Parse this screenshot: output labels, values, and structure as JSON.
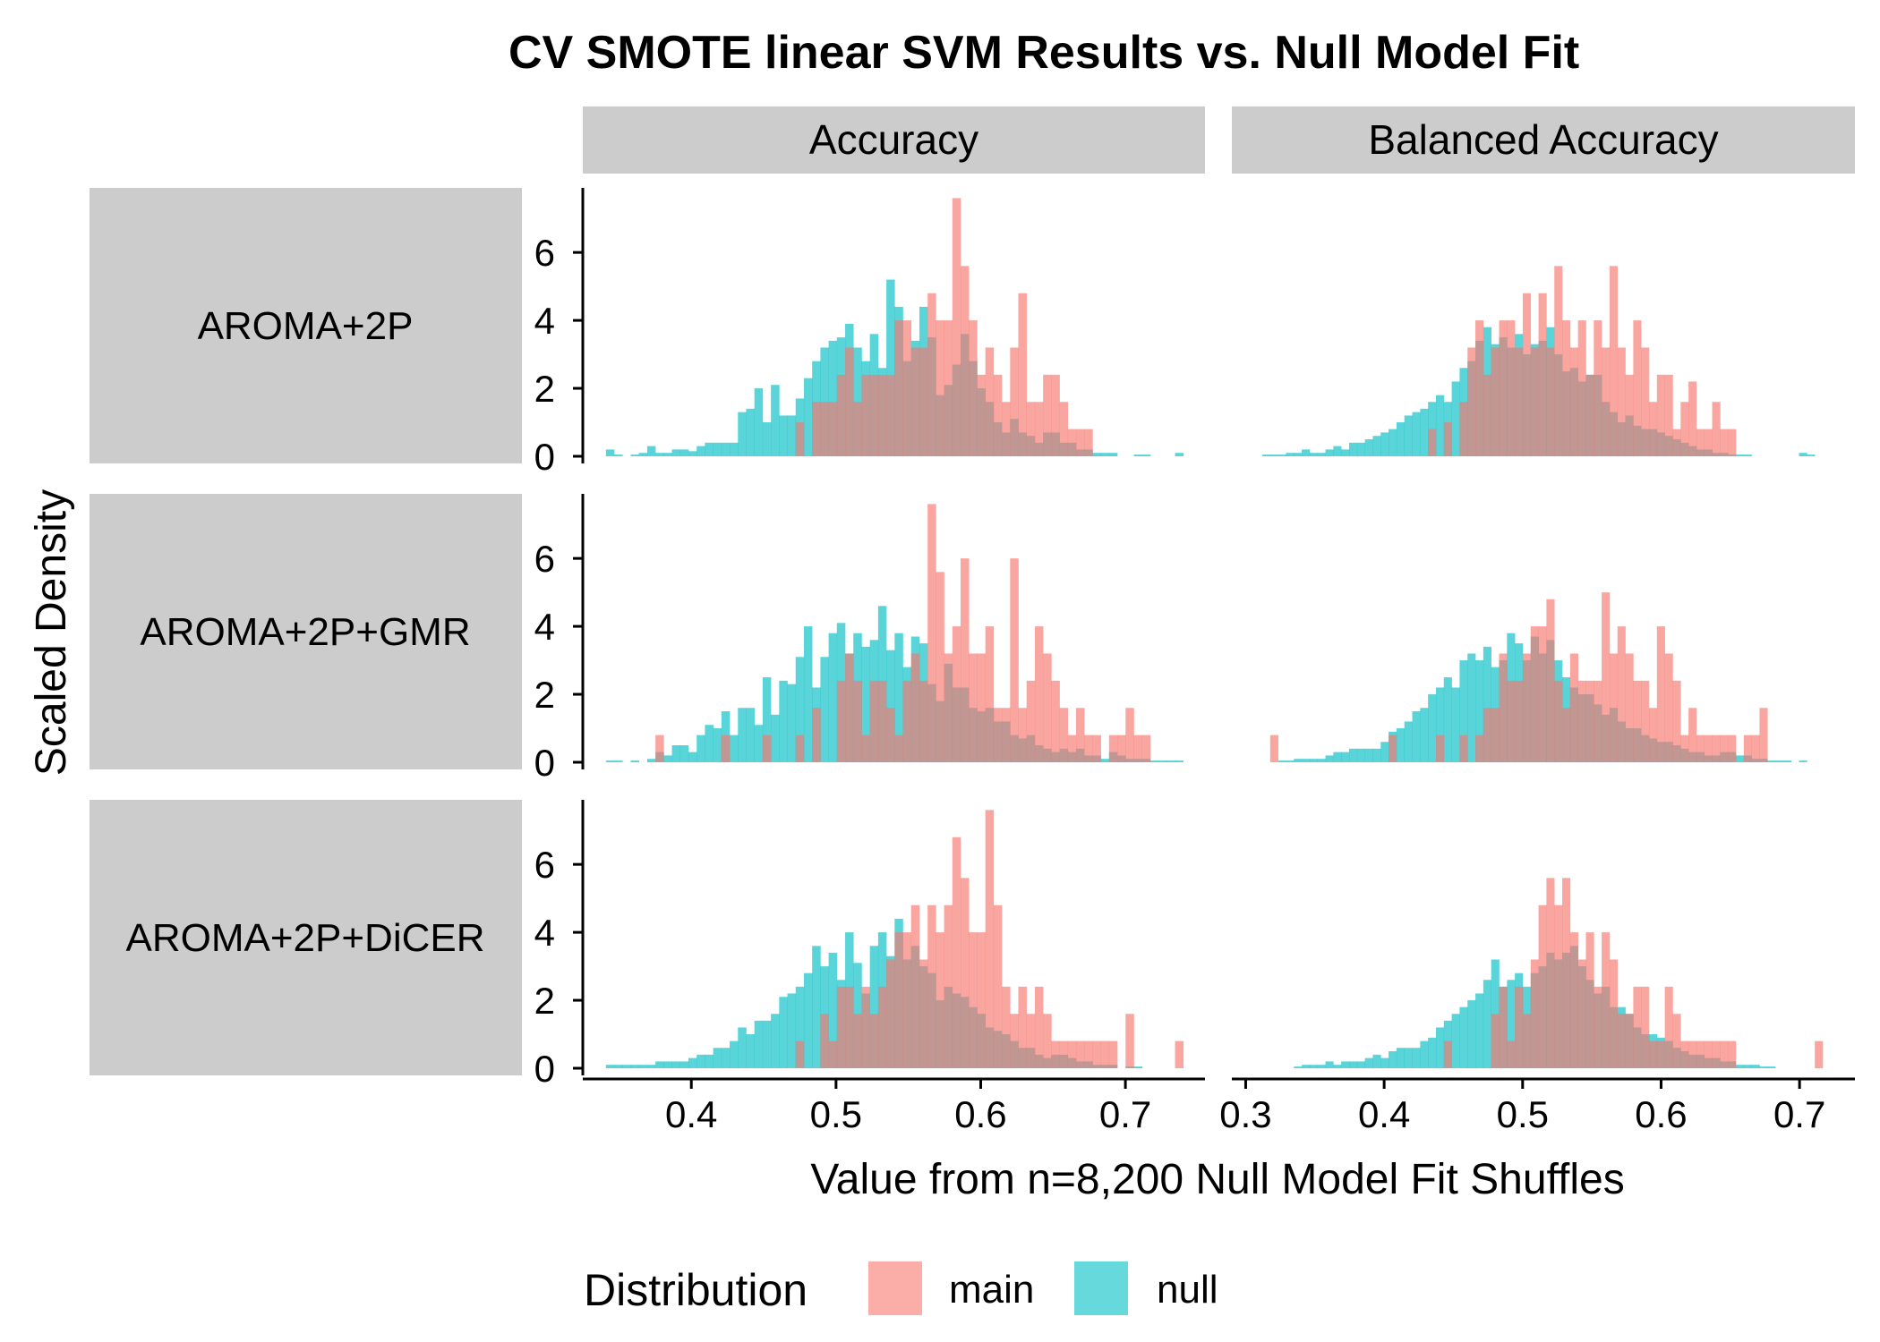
{
  "chart_data": {
    "type": "histogram",
    "title": "CV SMOTE linear SVM Results vs. Null Model Fit",
    "xlabel": "Value from n=8,200 Null Model Fit Shuffles",
    "ylabel": "Scaled Density",
    "legend": {
      "title": "Distribution",
      "position": "bottom",
      "entries": [
        {
          "name": "main",
          "color": "#F8766D"
        },
        {
          "name": "null",
          "color": "#00BFC4"
        }
      ]
    },
    "facet_columns": [
      "Accuracy",
      "Balanced Accuracy"
    ],
    "facet_rows": [
      "AROMA+2P",
      "AROMA+2P+GMR",
      "AROMA+2P+DiCER"
    ],
    "x_ticks": {
      "Accuracy": [
        0.4,
        0.5,
        0.6,
        0.7
      ],
      "Balanced Accuracy": [
        0.3,
        0.4,
        0.5,
        0.6,
        0.7
      ]
    },
    "x_tick_labels": {
      "Accuracy": [
        "0.4",
        "0.5",
        "0.6",
        "0.7"
      ],
      "Balanced Accuracy": [
        "0.3",
        "0.4",
        "0.5",
        "0.6",
        "0.7"
      ]
    },
    "xlim": {
      "Accuracy": [
        0.325,
        0.755
      ],
      "Balanced Accuracy": [
        0.29,
        0.74
      ]
    },
    "y_ticks": [
      0,
      2,
      4,
      6
    ],
    "y_tick_labels": [
      "0",
      "2",
      "4",
      "6"
    ],
    "ylim": [
      0,
      7.9
    ],
    "grid": false,
    "colors": {
      "main": "#F8766D",
      "null": "#00BFC4",
      "strip_bg": "#CCCCCC",
      "overlap_alpha": 0.65
    },
    "panels": [
      {
        "row": "AROMA+2P",
        "col": "Accuracy",
        "x0": 0.341,
        "bin_width": 0.0057,
        "null": [
          0.2,
          0.05,
          0,
          0.05,
          0.1,
          0.3,
          0.1,
          0.1,
          0.2,
          0.2,
          0.15,
          0.3,
          0.4,
          0.4,
          0.4,
          0.4,
          1.3,
          1.4,
          2.0,
          1.0,
          2.1,
          1.2,
          1.2,
          1.7,
          2.3,
          2.8,
          3.2,
          3.4,
          3.5,
          3.9,
          3.2,
          2.8,
          3.6,
          2.6,
          5.2,
          4.4,
          2.8,
          3.4,
          4.4,
          3.5,
          1.8,
          2.1,
          2.7,
          3.6,
          2.8,
          2.0,
          1.6,
          1.0,
          0.7,
          1.1,
          0.7,
          0.6,
          0.4,
          0.7,
          0.7,
          0.4,
          0.4,
          0.2,
          0.2,
          0.1,
          0.1,
          0.1,
          0,
          0,
          0.05,
          0.05,
          0,
          0,
          0,
          0.1
        ],
        "main": [
          0,
          0,
          0,
          0,
          0,
          0,
          0,
          0,
          0,
          0,
          0,
          0,
          0,
          0,
          0,
          0,
          0,
          0,
          0,
          0,
          0,
          0,
          0,
          1.0,
          0,
          1.6,
          1.6,
          1.6,
          2.4,
          3.2,
          1.6,
          2.4,
          2.4,
          2.4,
          2.4,
          4.0,
          4.0,
          3.2,
          3.2,
          4.8,
          4.0,
          4.0,
          7.6,
          5.6,
          4.0,
          2.4,
          3.2,
          2.4,
          1.6,
          3.2,
          4.8,
          1.6,
          1.6,
          2.4,
          2.4,
          1.6,
          0.8,
          0.8,
          0.8,
          0,
          0,
          0,
          0,
          0,
          0,
          0,
          0,
          0,
          0,
          0
        ]
      },
      {
        "row": "AROMA+2P",
        "col": "Balanced Accuracy",
        "x0": 0.312,
        "bin_width": 0.0057,
        "null": [
          0.05,
          0.05,
          0.05,
          0.1,
          0.1,
          0.2,
          0.1,
          0.1,
          0.2,
          0.3,
          0.2,
          0.4,
          0.4,
          0.5,
          0.6,
          0.7,
          0.8,
          1.0,
          1.2,
          1.3,
          1.4,
          1.6,
          1.8,
          1.6,
          2.2,
          2.6,
          2.8,
          3.4,
          3.8,
          3.3,
          3.5,
          3.2,
          3.6,
          3.0,
          3.3,
          3.4,
          3.8,
          3.0,
          2.5,
          2.6,
          2.2,
          2.4,
          2.4,
          1.6,
          1.3,
          1.0,
          1.2,
          0.9,
          0.8,
          0.8,
          0.7,
          0.6,
          0.5,
          0.4,
          0.3,
          0.2,
          0.2,
          0.1,
          0.1,
          0.05,
          0.05,
          0.05,
          0,
          0,
          0,
          0,
          0,
          0,
          0.1,
          0.05
        ],
        "main": [
          0,
          0,
          0,
          0,
          0,
          0,
          0,
          0,
          0,
          0,
          0,
          0,
          0,
          0,
          0,
          0,
          0,
          0,
          0,
          0,
          0,
          0.8,
          0,
          1.0,
          0,
          1.6,
          3.2,
          4.0,
          2.4,
          3.2,
          4.0,
          4.0,
          3.2,
          4.8,
          3.2,
          4.8,
          3.2,
          5.6,
          4.0,
          3.2,
          4.0,
          2.4,
          4.0,
          3.2,
          5.6,
          3.2,
          2.4,
          4.0,
          3.2,
          1.6,
          2.4,
          2.4,
          0.8,
          1.6,
          2.2,
          0.8,
          0.8,
          1.6,
          0.8,
          0.8,
          0,
          0,
          0,
          0,
          0,
          0,
          0,
          0,
          0,
          0
        ]
      },
      {
        "row": "AROMA+2P+GMR",
        "col": "Accuracy",
        "x0": 0.341,
        "bin_width": 0.0057,
        "null": [
          0.05,
          0.05,
          0,
          0.05,
          0,
          0.1,
          0.3,
          0.2,
          0.5,
          0.5,
          0.3,
          0.8,
          1.1,
          1.0,
          1.5,
          0.8,
          1.6,
          1.6,
          1.1,
          2.5,
          1.4,
          2.4,
          2.3,
          3.1,
          4.0,
          2.2,
          3.1,
          3.8,
          4.1,
          3.2,
          3.8,
          3.4,
          3.6,
          4.6,
          3.3,
          3.8,
          2.8,
          3.7,
          3.5,
          2.3,
          1.8,
          2.9,
          2.2,
          2.2,
          1.6,
          1.5,
          1.6,
          1.2,
          1.2,
          0.8,
          0.7,
          0.8,
          0.5,
          0.4,
          0.3,
          0.4,
          0.3,
          0.4,
          0.2,
          0.2,
          0.1,
          0.3,
          0.2,
          0.1,
          0.1,
          0.1,
          0.05,
          0.05,
          0.05,
          0.05
        ],
        "main": [
          0,
          0,
          0,
          0,
          0,
          0,
          0.8,
          0,
          0,
          0,
          0,
          0,
          0,
          0,
          0.8,
          0,
          0,
          0,
          0,
          0.8,
          0,
          0,
          0,
          0.8,
          0,
          1.6,
          0,
          0,
          2.4,
          3.2,
          2.4,
          0.8,
          2.4,
          2.4,
          1.6,
          0.8,
          2.4,
          3.2,
          2.4,
          7.6,
          5.6,
          3.2,
          4.0,
          6.0,
          3.2,
          3.2,
          4.0,
          1.6,
          1.6,
          6.0,
          1.6,
          2.4,
          4.0,
          3.2,
          2.4,
          1.6,
          0.8,
          1.6,
          0.8,
          0.8,
          0,
          0.8,
          0.8,
          1.6,
          0.8,
          0.8,
          0,
          0,
          0,
          0
        ]
      },
      {
        "row": "AROMA+2P+GMR",
        "col": "Balanced Accuracy",
        "x0": 0.312,
        "bin_width": 0.0057,
        "null": [
          0,
          0,
          0.05,
          0.05,
          0.1,
          0.1,
          0.1,
          0.1,
          0.2,
          0.3,
          0.3,
          0.4,
          0.4,
          0.4,
          0.4,
          0.6,
          0.9,
          1.0,
          1.2,
          1.5,
          1.6,
          2.0,
          2.2,
          2.5,
          2.2,
          3.0,
          3.2,
          3.0,
          3.4,
          2.8,
          3.0,
          3.8,
          3.5,
          3.0,
          3.7,
          3.2,
          3.6,
          3.0,
          2.5,
          2.2,
          2.0,
          2.0,
          1.7,
          1.4,
          1.6,
          1.2,
          1.0,
          1.0,
          0.8,
          0.7,
          0.6,
          0.6,
          0.5,
          0.4,
          0.3,
          0.3,
          0.2,
          0.2,
          0.3,
          0.3,
          0.2,
          0.2,
          0.1,
          0.1,
          0.05,
          0.05,
          0.05,
          0,
          0.05,
          0
        ],
        "main": [
          0,
          0.8,
          0,
          0,
          0,
          0,
          0,
          0,
          0,
          0,
          0,
          0,
          0,
          0,
          0,
          0,
          0.8,
          0,
          0,
          0,
          0,
          0,
          0.8,
          0,
          0,
          0.8,
          0,
          0.8,
          1.6,
          1.6,
          3.2,
          2.4,
          2.4,
          3.2,
          4.0,
          4.0,
          4.8,
          2.4,
          1.6,
          3.2,
          2.4,
          2.4,
          2.4,
          5.0,
          3.2,
          4.0,
          3.2,
          2.4,
          2.4,
          1.6,
          4.0,
          3.2,
          2.4,
          0.8,
          1.6,
          0.8,
          0.8,
          0.8,
          0.8,
          0.8,
          0,
          0.8,
          0.8,
          1.6,
          0,
          0,
          0,
          0,
          0,
          0
        ]
      },
      {
        "row": "AROMA+2P+DiCER",
        "col": "Accuracy",
        "x0": 0.341,
        "bin_width": 0.0057,
        "null": [
          0.1,
          0.1,
          0.1,
          0.1,
          0.1,
          0.1,
          0.2,
          0.2,
          0.2,
          0.2,
          0.3,
          0.4,
          0.4,
          0.6,
          0.6,
          0.8,
          1.2,
          1.0,
          1.4,
          1.4,
          1.6,
          2.1,
          2.2,
          2.4,
          2.8,
          3.6,
          3.0,
          3.4,
          2.6,
          4.0,
          3.1,
          2.2,
          3.6,
          4.0,
          3.3,
          4.4,
          3.2,
          3.6,
          3.0,
          2.8,
          2.0,
          2.4,
          2.2,
          2.1,
          1.8,
          1.6,
          1.2,
          1.1,
          1.0,
          0.8,
          0.6,
          0.6,
          0.4,
          0.3,
          0.4,
          0.4,
          0.3,
          0.2,
          0.2,
          0.1,
          0.1,
          0.1,
          0,
          0.05,
          0.05,
          0,
          0,
          0,
          0,
          0
        ],
        "main": [
          0,
          0,
          0,
          0,
          0,
          0,
          0,
          0,
          0,
          0,
          0,
          0,
          0,
          0,
          0,
          0,
          0,
          0,
          0,
          0,
          0,
          0,
          0,
          0.8,
          0,
          0,
          1.6,
          0.8,
          2.4,
          2.4,
          1.6,
          2.4,
          1.6,
          2.4,
          3.2,
          4.0,
          4.0,
          4.8,
          3.2,
          4.8,
          4.0,
          4.8,
          6.8,
          5.6,
          4.0,
          4.0,
          7.6,
          4.8,
          2.4,
          1.6,
          2.4,
          1.6,
          2.4,
          1.6,
          0.8,
          0.8,
          0.8,
          0.8,
          0.8,
          0.8,
          0.8,
          0.8,
          0,
          1.6,
          0,
          0,
          0,
          0,
          0,
          0.8
        ]
      },
      {
        "row": "AROMA+2P+DiCER",
        "col": "Balanced Accuracy",
        "x0": 0.312,
        "bin_width": 0.0057,
        "null": [
          0,
          0,
          0,
          0,
          0.05,
          0.1,
          0.1,
          0.1,
          0.2,
          0.1,
          0.2,
          0.2,
          0.2,
          0.3,
          0.4,
          0.3,
          0.5,
          0.6,
          0.6,
          0.6,
          0.8,
          0.9,
          1.2,
          1.4,
          1.6,
          1.8,
          2.0,
          2.2,
          2.6,
          3.2,
          2.4,
          2.6,
          2.8,
          2.4,
          2.8,
          3.0,
          3.4,
          3.2,
          3.4,
          3.6,
          3.0,
          2.6,
          2.2,
          2.4,
          1.8,
          1.8,
          1.6,
          1.2,
          1.0,
          1.0,
          0.9,
          0.8,
          0.6,
          0.5,
          0.4,
          0.4,
          0.3,
          0.3,
          0.2,
          0.2,
          0.1,
          0.1,
          0.1,
          0.05,
          0.05,
          0,
          0,
          0,
          0,
          0
        ],
        "main": [
          0,
          0,
          0,
          0,
          0,
          0,
          0,
          0,
          0,
          0,
          0,
          0,
          0,
          0,
          0,
          0,
          0,
          0,
          0,
          0,
          0,
          0,
          0,
          0.8,
          0,
          0,
          0,
          0,
          0,
          1.6,
          2.4,
          0.8,
          2.4,
          1.6,
          3.2,
          4.8,
          5.6,
          4.8,
          5.6,
          4.0,
          3.2,
          4.0,
          2.4,
          4.0,
          3.2,
          1.6,
          1.6,
          2.4,
          2.4,
          0.8,
          0.8,
          2.4,
          1.6,
          0.8,
          0.8,
          0.8,
          0.8,
          0.8,
          0.8,
          0.8,
          0,
          0,
          0,
          0,
          0,
          0,
          0,
          0,
          0,
          0,
          0.8
        ]
      }
    ]
  }
}
